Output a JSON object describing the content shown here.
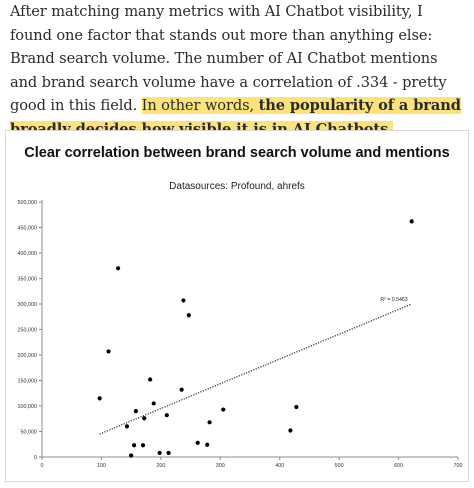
{
  "article": {
    "text_plain": "After matching many metrics with AI Chatbot visibility, I found one factor that stands out more than anything else: Brand search volume. The number of AI Chatbot mentions and brand search volume have a correlation of .334 - pretty good in this field.",
    "text_hl_plain": "In other words,",
    "text_hl_bold": "the popularity of a brand broadly decides how visible it is in AI Chatbots",
    "text_hl_end": "."
  },
  "chart_data": {
    "type": "scatter",
    "title": "Clear correlation between brand search volume and mentions",
    "subtitle": "Datasources: Profound, ahrefs",
    "xlabel": "",
    "ylabel": "",
    "xlim": [
      0,
      700
    ],
    "ylim": [
      0,
      500000
    ],
    "xticks": [
      0,
      100,
      200,
      300,
      400,
      500,
      600,
      700
    ],
    "yticks": [
      0,
      50000,
      100000,
      150000,
      200000,
      250000,
      300000,
      350000,
      400000,
      450000,
      500000
    ],
    "ytick_labels": [
      "0",
      "50,000",
      "100,000",
      "150,000",
      "200,000",
      "250,000",
      "300,000",
      "350,000",
      "400,000",
      "450,000",
      "500,000"
    ],
    "points": [
      {
        "x": 97,
        "y": 115000
      },
      {
        "x": 112,
        "y": 207000
      },
      {
        "x": 128,
        "y": 370000
      },
      {
        "x": 143,
        "y": 60000
      },
      {
        "x": 150,
        "y": 3000
      },
      {
        "x": 155,
        "y": 23000
      },
      {
        "x": 158,
        "y": 90000
      },
      {
        "x": 170,
        "y": 23000
      },
      {
        "x": 172,
        "y": 76000
      },
      {
        "x": 182,
        "y": 152000
      },
      {
        "x": 188,
        "y": 105000
      },
      {
        "x": 198,
        "y": 8000
      },
      {
        "x": 210,
        "y": 82000
      },
      {
        "x": 213,
        "y": 8000
      },
      {
        "x": 235,
        "y": 132000
      },
      {
        "x": 238,
        "y": 307000
      },
      {
        "x": 247,
        "y": 278000
      },
      {
        "x": 262,
        "y": 28000
      },
      {
        "x": 278,
        "y": 24000
      },
      {
        "x": 282,
        "y": 68000
      },
      {
        "x": 305,
        "y": 93000
      },
      {
        "x": 418,
        "y": 52000
      },
      {
        "x": 428,
        "y": 98000
      },
      {
        "x": 622,
        "y": 462000
      }
    ],
    "trendline": {
      "style": "dotted",
      "x": [
        97,
        622
      ],
      "y": [
        45000,
        300000
      ],
      "label": "R² = 0.5463"
    },
    "grid": false,
    "legend": "none",
    "colors": {
      "point": "#000000",
      "trend": "#333333",
      "axis": "#8c8c8c"
    }
  }
}
